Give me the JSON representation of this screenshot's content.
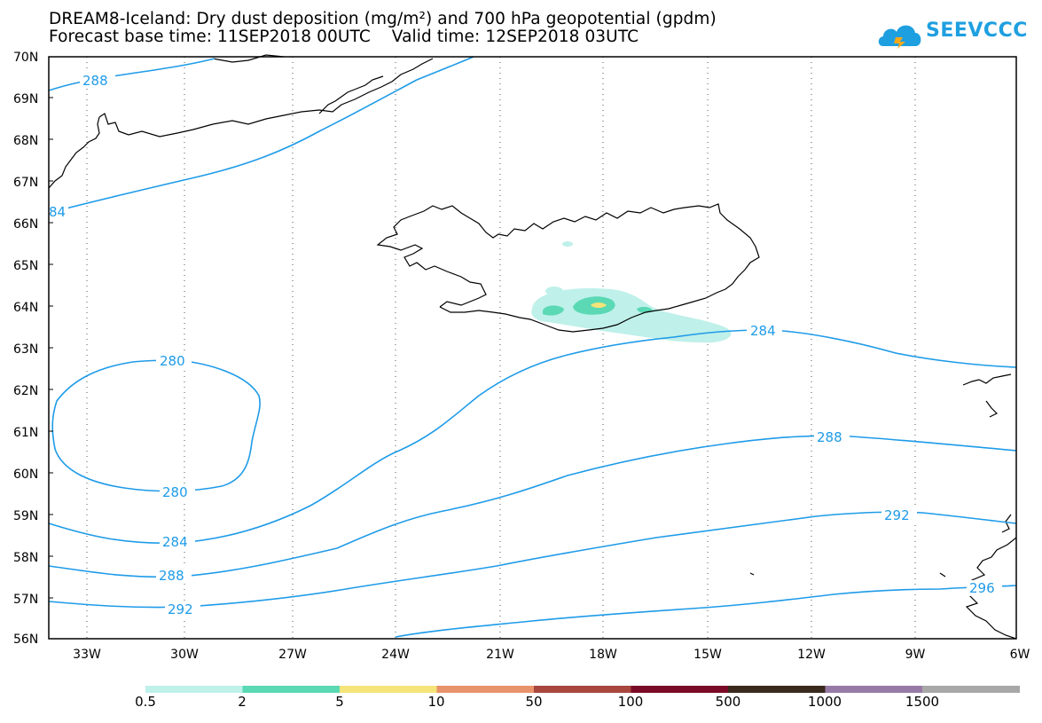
{
  "title_line1": "DREAM8-Iceland: Dry dust deposition (mg/m²) and 700 hPa geopotential (gpdm)",
  "title_line2": "Forecast base time: 11SEP2018 00UTC    Valid time: 12SEP2018 03UTC",
  "logo": {
    "text": "SEEVCCC",
    "icon": "cloud-logo-icon",
    "color": "#1e9fe0"
  },
  "map": {
    "lat_labels": [
      "70N",
      "69N",
      "68N",
      "67N",
      "66N",
      "65N",
      "64N",
      "63N",
      "62N",
      "61N",
      "60N",
      "59N",
      "58N",
      "57N",
      "56N"
    ],
    "lon_labels": [
      "33W",
      "30W",
      "27W",
      "24W",
      "21W",
      "18W",
      "15W",
      "12W",
      "9W",
      "6W"
    ],
    "contour_color": "#1e9be8",
    "contour_labels": [
      "288",
      "84",
      "280",
      "280",
      "284",
      "288",
      "292",
      "284",
      "288",
      "292",
      "296"
    ]
  },
  "legend": {
    "colors": [
      "#bff0ea",
      "#5ad9b4",
      "#f5e47a",
      "#e8936a",
      "#a8473e",
      "#7a0a26",
      "#3a2a1e",
      "#987aa6",
      "#a8a8a8"
    ],
    "labels": [
      "0.5",
      "2",
      "5",
      "10",
      "50",
      "100",
      "500",
      "1000",
      "1500"
    ]
  }
}
